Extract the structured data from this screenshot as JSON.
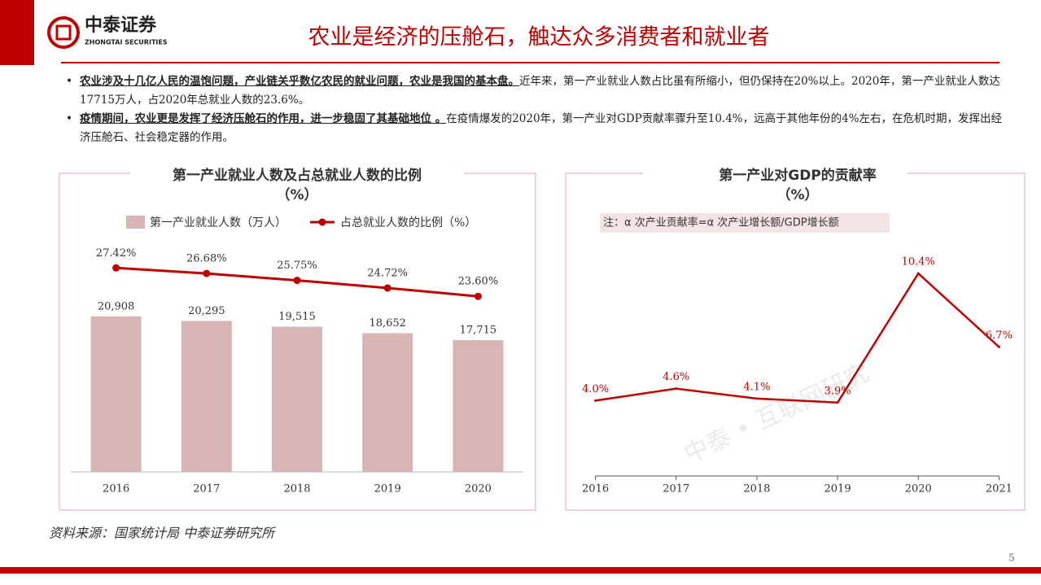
{
  "header": {
    "logo": "中泰证券",
    "logo_sub": "ZHONGTAI SECURITIES",
    "title": "农业是经济的压舱石，触达众多消费者和就业者"
  },
  "bullets": [
    {
      "bold": "农业涉及十几亿人民的温饱问题，产业链关乎数亿农民的就业问题，农业是我国的基本盘。",
      "text": "近年来，第一产业就业人数占比虽有所缩小，但仍保持在20%以上。2020年，第一产业就业人数达17715万人，占2020年总就业人数的23.6%。"
    },
    {
      "bold": "疫情期间，农业更是发挥了经济压舱石的作用，进一步稳固了其基础地位 。",
      "text": "在疫情爆发的2020年，第一产业对GDP贡献率骤升至10.4%，远高于其他年份的4%左右，在危机时期，发挥出经济压舱石、社会稳定器的作用。"
    }
  ],
  "chart_data": [
    {
      "type": "combo",
      "title": "第一产业就业人数及占总就业人数的比例",
      "subtitle": "（%）",
      "categories": [
        "2016",
        "2017",
        "2018",
        "2019",
        "2020"
      ],
      "ylim": [
        0,
        35000
      ],
      "y2lim": [
        0,
        35
      ],
      "series": [
        {
          "name": "第一产业就业人数（万人）",
          "kind": "bar",
          "color": "#d7b5b5",
          "values": [
            20908,
            20295,
            19515,
            18652,
            17715
          ],
          "value_labels": [
            "20,908",
            "20,295",
            "19,515",
            "18,652",
            "17,715"
          ]
        },
        {
          "name": "占总就业人数的比例（%）",
          "kind": "line",
          "axis": "y2",
          "color": "#c00000",
          "values": [
            27.42,
            26.68,
            25.75,
            24.72,
            23.6
          ],
          "value_labels": [
            "27.42%",
            "26.68%",
            "25.75%",
            "24.72%",
            "23.60%"
          ]
        }
      ]
    },
    {
      "type": "line",
      "title": "第一产业对GDP的贡献率",
      "subtitle": "（%）",
      "annotation": "注：α 次产业贡献率=α 次产业增长额/GDP增长额",
      "watermark": "中泰 • 互联网研究",
      "categories": [
        "2016",
        "2017",
        "2018",
        "2019",
        "2020",
        "2021"
      ],
      "ylim": [
        0,
        12
      ],
      "series": [
        {
          "name": "第一产业对GDP的贡献率",
          "color": "#c00000",
          "values": [
            4.0,
            4.6,
            4.1,
            3.9,
            10.4,
            6.7
          ],
          "value_labels": [
            "4.0%",
            "4.6%",
            "4.1%",
            "3.9%",
            "10.4%",
            "6.7%"
          ]
        }
      ]
    }
  ],
  "footer": {
    "source": "资料来源：国家统计局 中泰证券研究所",
    "page": "5"
  }
}
